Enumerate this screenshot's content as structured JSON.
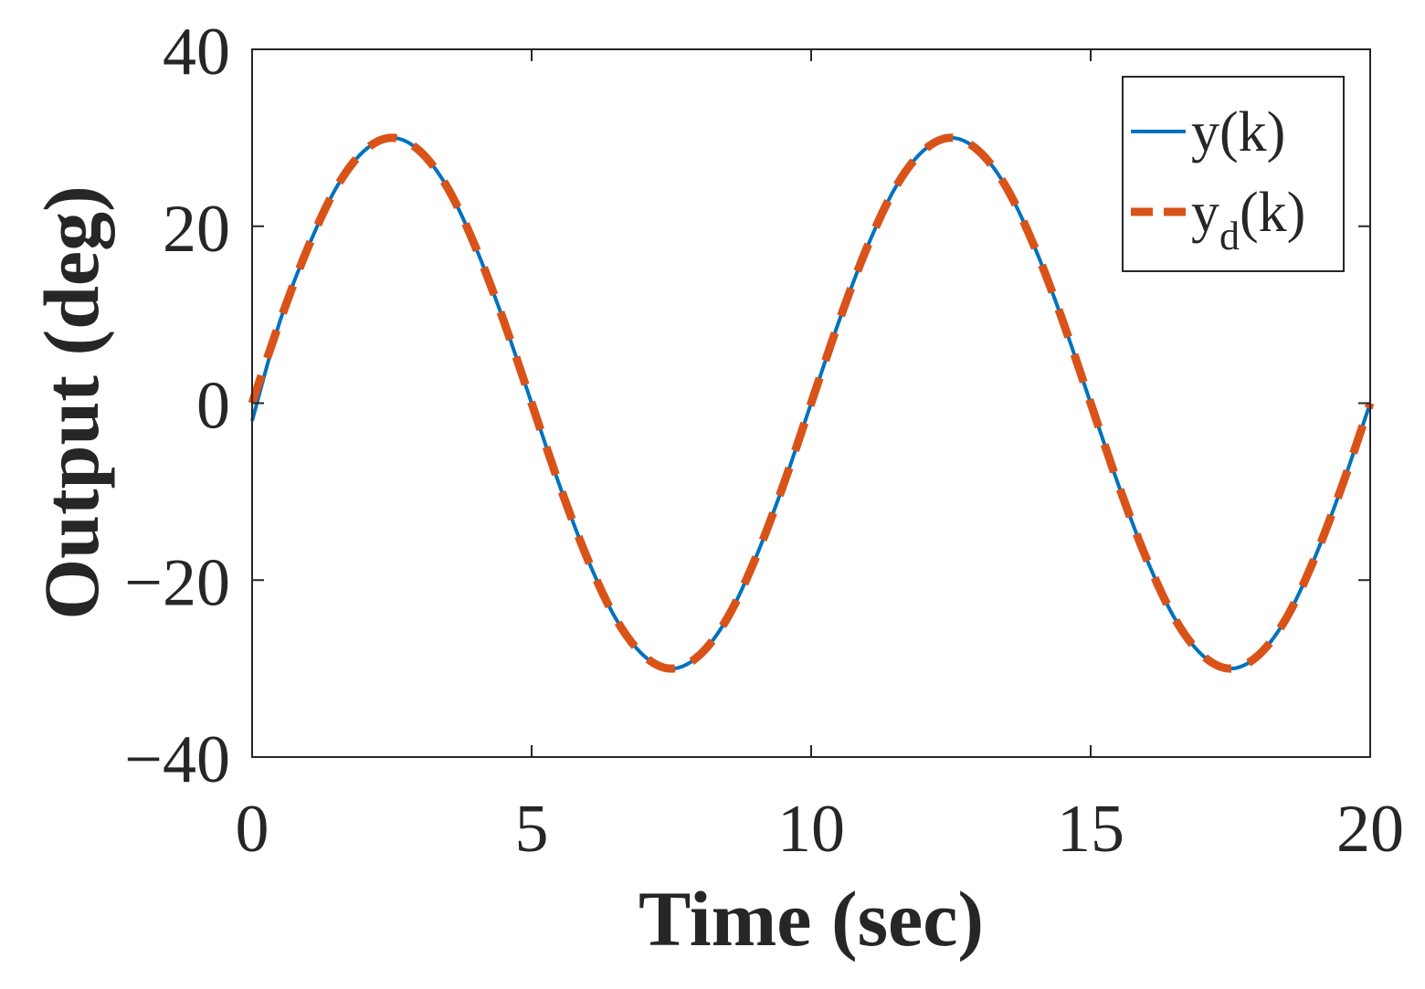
{
  "chart_data": {
    "type": "line",
    "title": "",
    "xlabel": "Time (sec)",
    "ylabel": "Output (deg)",
    "xlim": [
      0,
      20
    ],
    "ylim": [
      -40,
      40
    ],
    "xticks": [
      0,
      5,
      10,
      15,
      20
    ],
    "xtick_labels": [
      "0",
      "5",
      "10",
      "15",
      "20"
    ],
    "yticks": [
      -40,
      -20,
      0,
      20,
      40
    ],
    "ytick_labels": [
      "−40",
      "−20",
      "0",
      "20",
      "40"
    ],
    "grid": false,
    "legend_position": "top-right",
    "series": [
      {
        "name": "y(k)",
        "legend_base": "y",
        "legend_sub": "",
        "legend_suffix": "(k)",
        "style": "solid",
        "color": "#0072BD",
        "x": [
          0,
          0.5,
          1,
          1.5,
          2,
          2.5,
          3,
          3.5,
          4,
          4.5,
          5,
          5.5,
          6,
          6.5,
          7,
          7.5,
          8,
          8.5,
          9,
          9.5,
          10,
          10.5,
          11,
          11.5,
          12,
          12.5,
          13,
          13.5,
          14,
          14.5,
          15,
          15.5,
          16,
          16.5,
          17,
          17.5,
          18,
          18.5,
          19,
          19.5,
          20
        ],
        "y": [
          -2,
          9.3,
          17.6,
          24.3,
          28.5,
          30.0,
          28.5,
          24.3,
          17.6,
          9.3,
          0,
          -9.3,
          -17.6,
          -24.3,
          -28.5,
          -30.0,
          -28.5,
          -24.3,
          -17.6,
          -9.3,
          0,
          9.3,
          17.6,
          24.3,
          28.5,
          30.0,
          28.5,
          24.3,
          17.6,
          9.3,
          0,
          -9.3,
          -17.6,
          -24.3,
          -28.5,
          -30.0,
          -28.5,
          -24.3,
          -17.6,
          -9.3,
          0
        ]
      },
      {
        "name": "y_d(k)",
        "legend_base": "y",
        "legend_sub": "d",
        "legend_suffix": "(k)",
        "style": "dashed",
        "color": "#D95319",
        "x": [
          0,
          0.5,
          1,
          1.5,
          2,
          2.5,
          3,
          3.5,
          4,
          4.5,
          5,
          5.5,
          6,
          6.5,
          7,
          7.5,
          8,
          8.5,
          9,
          9.5,
          10,
          10.5,
          11,
          11.5,
          12,
          12.5,
          13,
          13.5,
          14,
          14.5,
          15,
          15.5,
          16,
          16.5,
          17,
          17.5,
          18,
          18.5,
          19,
          19.5,
          20
        ],
        "y": [
          0,
          9.3,
          17.6,
          24.3,
          28.5,
          30.0,
          28.5,
          24.3,
          17.6,
          9.3,
          0,
          -9.3,
          -17.6,
          -24.3,
          -28.5,
          -30.0,
          -28.5,
          -24.3,
          -17.6,
          -9.3,
          0,
          9.3,
          17.6,
          24.3,
          28.5,
          30.0,
          28.5,
          24.3,
          17.6,
          9.3,
          0,
          -9.3,
          -17.6,
          -24.3,
          -28.5,
          -30.0,
          -28.5,
          -24.3,
          -17.6,
          -9.3,
          0
        ]
      }
    ]
  }
}
